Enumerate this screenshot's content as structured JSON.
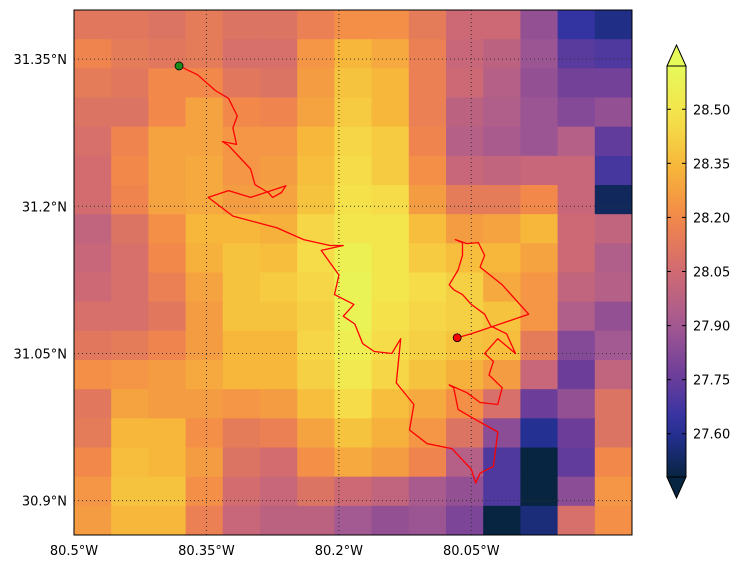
{
  "map": {
    "lon_range": [
      -80.5,
      -79.868
    ],
    "lat_range": [
      30.865,
      31.4
    ],
    "x_tick_values": [
      -80.5,
      -80.35,
      -80.2,
      -80.05
    ],
    "x_tick_labels": [
      "80.5°W",
      "80.35°W",
      "80.2°W",
      "80.05°W"
    ],
    "y_tick_values": [
      30.9,
      31.05,
      31.2,
      31.35
    ],
    "y_tick_labels": [
      "30.9°N",
      "31.05°N",
      "31.2°N",
      "31.35°N"
    ],
    "grid": true,
    "grid_style": "dotted",
    "grid_color": "#333333",
    "colormap": "thermal",
    "colormap_stops": [
      "#072440",
      "#2b32a3",
      "#6e3e9a",
      "#a65a91",
      "#d06a72",
      "#f2864a",
      "#f7b53a",
      "#f5e24a",
      "#e6fa5a"
    ],
    "extend": "both",
    "heatmap": {
      "rows": [
        [
          28.12,
          28.12,
          28.1,
          28.14,
          28.1,
          28.1,
          28.16,
          28.22,
          28.22,
          28.14,
          28.04,
          28.04,
          27.86,
          27.64,
          27.58
        ],
        [
          28.18,
          28.14,
          28.12,
          28.14,
          28.08,
          28.08,
          28.24,
          28.34,
          28.3,
          28.16,
          28.02,
          27.98,
          27.88,
          27.72,
          27.7
        ],
        [
          28.14,
          28.12,
          28.2,
          28.2,
          28.12,
          28.1,
          28.26,
          28.38,
          28.34,
          28.16,
          28.04,
          27.96,
          27.86,
          27.78,
          27.78
        ],
        [
          28.1,
          28.1,
          28.2,
          28.28,
          28.2,
          28.18,
          28.28,
          28.4,
          28.34,
          28.16,
          27.98,
          27.94,
          27.88,
          27.82,
          27.86
        ],
        [
          28.08,
          28.18,
          28.28,
          28.28,
          28.24,
          28.24,
          28.34,
          28.44,
          28.4,
          28.18,
          27.96,
          27.92,
          27.88,
          27.96,
          27.74
        ],
        [
          28.06,
          28.2,
          28.28,
          28.3,
          28.24,
          28.26,
          28.36,
          28.46,
          28.4,
          28.22,
          28.02,
          28.0,
          28.02,
          28.02,
          27.68
        ],
        [
          28.06,
          28.18,
          28.28,
          28.3,
          28.26,
          28.28,
          28.38,
          28.48,
          28.46,
          28.26,
          28.14,
          28.14,
          28.2,
          28.02,
          27.52
        ],
        [
          28.0,
          28.1,
          28.22,
          28.34,
          28.34,
          28.32,
          28.44,
          28.5,
          28.5,
          28.36,
          28.26,
          28.28,
          28.34,
          28.04,
          28.0
        ],
        [
          28.02,
          28.08,
          28.2,
          28.32,
          28.38,
          28.36,
          28.46,
          28.56,
          28.5,
          28.4,
          28.36,
          28.34,
          28.28,
          28.04,
          27.94
        ],
        [
          28.04,
          28.08,
          28.16,
          28.28,
          28.38,
          28.4,
          28.44,
          28.58,
          28.5,
          28.46,
          28.42,
          28.3,
          28.24,
          28.0,
          27.96
        ],
        [
          28.08,
          28.08,
          28.12,
          28.26,
          28.38,
          28.38,
          28.42,
          28.58,
          28.48,
          28.44,
          28.42,
          28.38,
          28.24,
          27.94,
          27.86
        ],
        [
          28.12,
          28.14,
          28.18,
          28.26,
          28.34,
          28.34,
          28.44,
          28.54,
          28.46,
          28.42,
          28.38,
          28.36,
          28.14,
          27.82,
          27.9
        ],
        [
          28.22,
          28.24,
          28.26,
          28.3,
          28.34,
          28.34,
          28.42,
          28.52,
          28.44,
          28.38,
          28.32,
          28.26,
          28.02,
          27.76,
          28.0
        ],
        [
          28.12,
          28.28,
          28.26,
          28.26,
          28.24,
          28.26,
          28.36,
          28.46,
          28.36,
          28.3,
          28.22,
          28.08,
          27.76,
          27.86,
          28.1
        ],
        [
          28.14,
          28.34,
          28.34,
          28.22,
          28.14,
          28.16,
          28.28,
          28.38,
          28.32,
          28.24,
          28.1,
          27.84,
          27.6,
          27.76,
          28.1
        ],
        [
          28.2,
          28.36,
          28.34,
          28.26,
          28.1,
          28.06,
          28.22,
          28.3,
          28.26,
          28.18,
          27.96,
          27.7,
          27.48,
          27.74,
          28.2
        ],
        [
          28.24,
          28.38,
          28.38,
          28.22,
          28.06,
          28.02,
          28.1,
          28.04,
          28.0,
          27.92,
          27.86,
          27.7,
          27.48,
          27.84,
          28.24
        ],
        [
          28.26,
          28.34,
          28.34,
          28.16,
          28.02,
          27.98,
          27.98,
          27.9,
          27.86,
          27.88,
          27.8,
          27.46,
          27.56,
          28.08,
          28.22
        ]
      ]
    },
    "track": {
      "color": "#ff0000",
      "start_marker_color": "#1a8a1a",
      "end_marker_color": "#ff0000",
      "points": [
        [
          -80.381,
          31.343
        ],
        [
          -80.36,
          31.334
        ],
        [
          -80.34,
          31.318
        ],
        [
          -80.325,
          31.31
        ],
        [
          -80.315,
          31.292
        ],
        [
          -80.32,
          31.28
        ],
        [
          -80.316,
          31.263
        ],
        [
          -80.332,
          31.266
        ],
        [
          -80.325,
          31.262
        ],
        [
          -80.3,
          31.238
        ],
        [
          -80.295,
          31.222
        ],
        [
          -80.28,
          31.214
        ],
        [
          -80.275,
          31.209
        ],
        [
          -80.265,
          31.214
        ],
        [
          -80.26,
          31.221
        ],
        [
          -80.3,
          31.209
        ],
        [
          -80.325,
          31.216
        ],
        [
          -80.348,
          31.209
        ],
        [
          -80.32,
          31.19
        ],
        [
          -80.27,
          31.178
        ],
        [
          -80.24,
          31.166
        ],
        [
          -80.21,
          31.16
        ],
        [
          -80.195,
          31.16
        ],
        [
          -80.22,
          31.155
        ],
        [
          -80.2,
          31.13
        ],
        [
          -80.205,
          31.11
        ],
        [
          -80.183,
          31.1
        ],
        [
          -80.195,
          31.088
        ],
        [
          -80.182,
          31.08
        ],
        [
          -80.173,
          31.06
        ],
        [
          -80.16,
          31.052
        ],
        [
          -80.14,
          31.05
        ],
        [
          -80.13,
          31.065
        ],
        [
          -80.135,
          31.02
        ],
        [
          -80.115,
          30.998
        ],
        [
          -80.12,
          30.972
        ],
        [
          -80.1,
          30.958
        ],
        [
          -80.072,
          30.953
        ],
        [
          -80.05,
          30.932
        ],
        [
          -80.045,
          30.918
        ],
        [
          -80.04,
          30.928
        ],
        [
          -80.025,
          30.935
        ],
        [
          -80.02,
          30.97
        ],
        [
          -80.05,
          30.985
        ],
        [
          -80.065,
          30.993
        ],
        [
          -80.07,
          31.015
        ],
        [
          -80.075,
          31.018
        ],
        [
          -80.055,
          31.01
        ],
        [
          -80.04,
          31.0
        ],
        [
          -80.02,
          30.998
        ],
        [
          -80.015,
          31.015
        ],
        [
          -80.03,
          31.028
        ],
        [
          -80.025,
          31.042
        ],
        [
          -80.035,
          31.05
        ],
        [
          -80.02,
          31.065
        ],
        [
          -80.0,
          31.05
        ],
        [
          -80.01,
          31.07
        ],
        [
          -80.028,
          31.078
        ],
        [
          -80.035,
          31.09
        ],
        [
          -80.05,
          31.1
        ],
        [
          -80.06,
          31.11
        ],
        [
          -80.07,
          31.115
        ],
        [
          -80.075,
          31.12
        ],
        [
          -80.065,
          31.135
        ],
        [
          -80.06,
          31.15
        ],
        [
          -80.06,
          31.163
        ],
        [
          -80.068,
          31.166
        ],
        [
          -80.055,
          31.162
        ],
        [
          -80.042,
          31.163
        ],
        [
          -80.035,
          31.15
        ],
        [
          -80.04,
          31.138
        ],
        [
          -80.015,
          31.12
        ],
        [
          -79.985,
          31.09
        ],
        [
          -80.05,
          31.07
        ],
        [
          -80.066,
          31.066
        ]
      ]
    }
  },
  "colorbar": {
    "vmin": 27.48,
    "vmax": 28.62,
    "tick_values": [
      27.6,
      27.75,
      27.9,
      28.05,
      28.2,
      28.35,
      28.5
    ],
    "tick_labels": [
      "27.60",
      "27.75",
      "27.90",
      "28.05",
      "28.20",
      "28.35",
      "28.50"
    ]
  }
}
